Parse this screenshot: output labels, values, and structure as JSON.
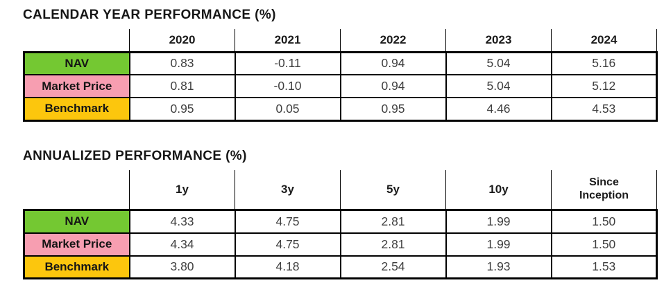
{
  "colors": {
    "nav_row": "#74C832",
    "market_price_row": "#F79EB1",
    "benchmark_row": "#FCC60D",
    "border": "#000000",
    "title_text": "#161616",
    "value_text": "#3F3F3F"
  },
  "chart_data": [
    {
      "type": "table",
      "title": "CALENDAR YEAR PERFORMANCE (%)",
      "columns": [
        "2020",
        "2021",
        "2022",
        "2023",
        "2024"
      ],
      "rows": [
        {
          "label": "NAV",
          "values": [
            "0.83",
            "-0.11",
            "0.94",
            "5.04",
            "5.16"
          ]
        },
        {
          "label": "Market Price",
          "values": [
            "0.81",
            "-0.10",
            "0.94",
            "5.04",
            "5.12"
          ]
        },
        {
          "label": "Benchmark",
          "values": [
            "0.95",
            "0.05",
            "0.95",
            "4.46",
            "4.53"
          ]
        }
      ]
    },
    {
      "type": "table",
      "title": "ANNUALIZED PERFORMANCE (%)",
      "columns": [
        "1y",
        "3y",
        "5y",
        "10y",
        "Since Inception"
      ],
      "rows": [
        {
          "label": "NAV",
          "values": [
            "4.33",
            "4.75",
            "2.81",
            "1.99",
            "1.50"
          ]
        },
        {
          "label": "Market Price",
          "values": [
            "4.34",
            "4.75",
            "2.81",
            "1.99",
            "1.50"
          ]
        },
        {
          "label": "Benchmark",
          "values": [
            "3.80",
            "4.18",
            "2.54",
            "1.93",
            "1.53"
          ]
        }
      ]
    }
  ]
}
